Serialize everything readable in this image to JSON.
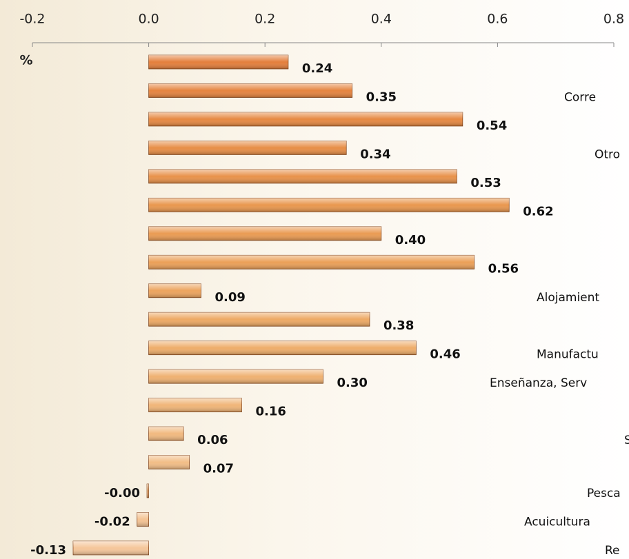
{
  "chart_data": {
    "type": "bar",
    "orientation": "horizontal",
    "unit_label": "%",
    "categories": [
      null,
      "Corre",
      null,
      "Otro",
      null,
      null,
      null,
      null,
      "Alojamient",
      null,
      "Manufactu",
      "Enseñanza, Serv",
      null,
      "S",
      null,
      "Pesca",
      "Acuicultura",
      "Re"
    ],
    "values": [
      0.24,
      0.35,
      0.54,
      0.34,
      0.53,
      0.62,
      0.4,
      0.56,
      0.09,
      0.38,
      0.46,
      0.3,
      0.16,
      0.06,
      0.07,
      -0.003,
      -0.02,
      -0.13
    ],
    "value_labels": [
      "0.24",
      "0.35",
      "0.54",
      "0.34",
      "0.53",
      "0.62",
      "0.40",
      "0.56",
      "0.09",
      "0.38",
      "0.46",
      "0.30",
      "0.16",
      "0.06",
      "0.07",
      "-0.00",
      "-0.02",
      "-0.13"
    ],
    "colors": [
      "#e47f3c",
      "#e5843f",
      "#e68942",
      "#e78e46",
      "#e8924a",
      "#e9974e",
      "#ea9b53",
      "#eba058",
      "#eca45e",
      "#eda964",
      "#eead6a",
      "#efb171",
      "#f0b578",
      "#f1b97f",
      "#f2bd86",
      "#f3c08c",
      "#f4c393",
      "#f5c69a"
    ],
    "negative_color": "#e00000",
    "xlim": [
      -0.2,
      0.8
    ],
    "xticks": [
      -0.2,
      {
        "value": 0,
        "label": "0.0"
      },
      0.2,
      0.4,
      0.6,
      0.8
    ]
  }
}
